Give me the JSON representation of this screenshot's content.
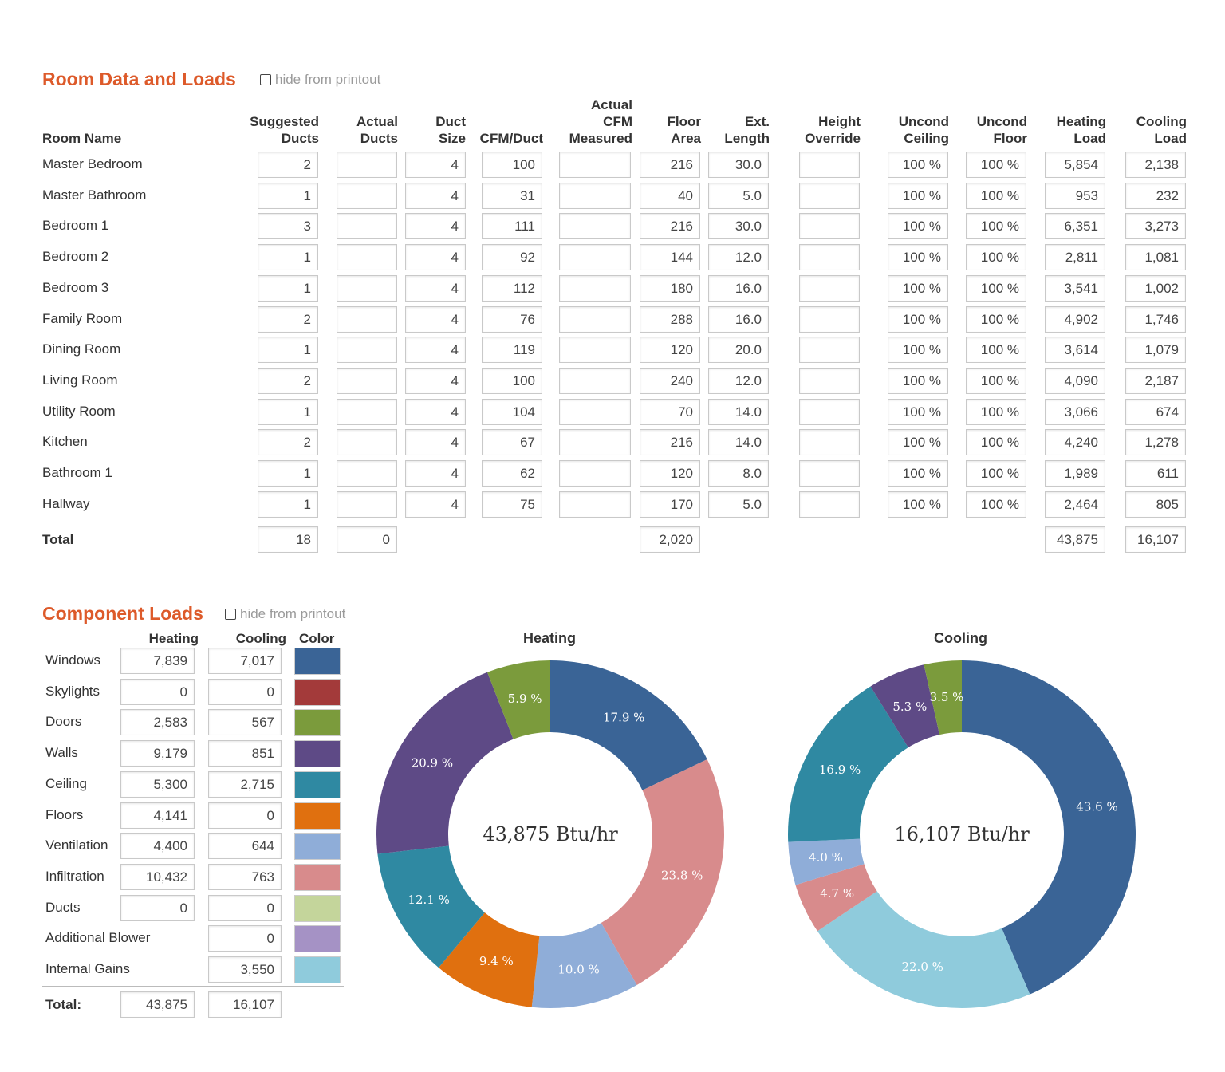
{
  "room_section": {
    "title": "Room Data and Loads",
    "hide_label": "hide from printout",
    "headers": {
      "room_name": "Room Name",
      "suggested_ducts": "Suggested\nDucts",
      "actual_ducts": "Actual\nDucts",
      "duct_size": "Duct\nSize",
      "cfm_duct": "CFM/Duct",
      "actual_cfm": "Actual\nCFM\nMeasured",
      "floor_area": "Floor\nArea",
      "ext_length": "Ext.\nLength",
      "height_override": "Height\nOverride",
      "uncond_ceiling": "Uncond\nCeiling",
      "uncond_floor": "Uncond\nFloor",
      "heating_load": "Heating\nLoad",
      "cooling_load": "Cooling\nLoad"
    },
    "rows": [
      {
        "name": "Master Bedroom",
        "suggested": "2",
        "actual": "",
        "duct_size": "4",
        "cfm": "100",
        "cfm_measured": "",
        "floor_area": "216",
        "ext_length": "30.0",
        "height": "",
        "ceiling": "100 %",
        "floor": "100 %",
        "heating": "5,854",
        "cooling": "2,138"
      },
      {
        "name": "Master Bathroom",
        "suggested": "1",
        "actual": "",
        "duct_size": "4",
        "cfm": "31",
        "cfm_measured": "",
        "floor_area": "40",
        "ext_length": "5.0",
        "height": "",
        "ceiling": "100 %",
        "floor": "100 %",
        "heating": "953",
        "cooling": "232"
      },
      {
        "name": "Bedroom 1",
        "suggested": "3",
        "actual": "",
        "duct_size": "4",
        "cfm": "111",
        "cfm_measured": "",
        "floor_area": "216",
        "ext_length": "30.0",
        "height": "",
        "ceiling": "100 %",
        "floor": "100 %",
        "heating": "6,351",
        "cooling": "3,273"
      },
      {
        "name": "Bedroom 2",
        "suggested": "1",
        "actual": "",
        "duct_size": "4",
        "cfm": "92",
        "cfm_measured": "",
        "floor_area": "144",
        "ext_length": "12.0",
        "height": "",
        "ceiling": "100 %",
        "floor": "100 %",
        "heating": "2,811",
        "cooling": "1,081"
      },
      {
        "name": "Bedroom 3",
        "suggested": "1",
        "actual": "",
        "duct_size": "4",
        "cfm": "112",
        "cfm_measured": "",
        "floor_area": "180",
        "ext_length": "16.0",
        "height": "",
        "ceiling": "100 %",
        "floor": "100 %",
        "heating": "3,541",
        "cooling": "1,002"
      },
      {
        "name": "Family Room",
        "suggested": "2",
        "actual": "",
        "duct_size": "4",
        "cfm": "76",
        "cfm_measured": "",
        "floor_area": "288",
        "ext_length": "16.0",
        "height": "",
        "ceiling": "100 %",
        "floor": "100 %",
        "heating": "4,902",
        "cooling": "1,746"
      },
      {
        "name": "Dining Room",
        "suggested": "1",
        "actual": "",
        "duct_size": "4",
        "cfm": "119",
        "cfm_measured": "",
        "floor_area": "120",
        "ext_length": "20.0",
        "height": "",
        "ceiling": "100 %",
        "floor": "100 %",
        "heating": "3,614",
        "cooling": "1,079"
      },
      {
        "name": "Living Room",
        "suggested": "2",
        "actual": "",
        "duct_size": "4",
        "cfm": "100",
        "cfm_measured": "",
        "floor_area": "240",
        "ext_length": "12.0",
        "height": "",
        "ceiling": "100 %",
        "floor": "100 %",
        "heating": "4,090",
        "cooling": "2,187"
      },
      {
        "name": "Utility Room",
        "suggested": "1",
        "actual": "",
        "duct_size": "4",
        "cfm": "104",
        "cfm_measured": "",
        "floor_area": "70",
        "ext_length": "14.0",
        "height": "",
        "ceiling": "100 %",
        "floor": "100 %",
        "heating": "3,066",
        "cooling": "674"
      },
      {
        "name": "Kitchen",
        "suggested": "2",
        "actual": "",
        "duct_size": "4",
        "cfm": "67",
        "cfm_measured": "",
        "floor_area": "216",
        "ext_length": "14.0",
        "height": "",
        "ceiling": "100 %",
        "floor": "100 %",
        "heating": "4,240",
        "cooling": "1,278"
      },
      {
        "name": "Bathroom 1",
        "suggested": "1",
        "actual": "",
        "duct_size": "4",
        "cfm": "62",
        "cfm_measured": "",
        "floor_area": "120",
        "ext_length": "8.0",
        "height": "",
        "ceiling": "100 %",
        "floor": "100 %",
        "heating": "1,989",
        "cooling": "611"
      },
      {
        "name": "Hallway",
        "suggested": "1",
        "actual": "",
        "duct_size": "4",
        "cfm": "75",
        "cfm_measured": "",
        "floor_area": "170",
        "ext_length": "5.0",
        "height": "",
        "ceiling": "100 %",
        "floor": "100 %",
        "heating": "2,464",
        "cooling": "805"
      }
    ],
    "total": {
      "label": "Total",
      "suggested": "18",
      "actual": "0",
      "floor_area": "2,020",
      "heating": "43,875",
      "cooling": "16,107"
    }
  },
  "component_section": {
    "title": "Component Loads",
    "hide_label": "hide from printout",
    "headers": {
      "heating": "Heating",
      "cooling": "Cooling",
      "color": "Color"
    },
    "rows": [
      {
        "name": "Windows",
        "heating": "7,839",
        "cooling": "7,017",
        "color": "#3a6496"
      },
      {
        "name": "Skylights",
        "heating": "0",
        "cooling": "0",
        "color": "#a33a3a"
      },
      {
        "name": "Doors",
        "heating": "2,583",
        "cooling": "567",
        "color": "#7b9b3c"
      },
      {
        "name": "Walls",
        "heating": "9,179",
        "cooling": "851",
        "color": "#5e4a86"
      },
      {
        "name": "Ceiling",
        "heating": "5,300",
        "cooling": "2,715",
        "color": "#2f89a2"
      },
      {
        "name": "Floors",
        "heating": "4,141",
        "cooling": "0",
        "color": "#e0700f"
      },
      {
        "name": "Ventilation",
        "heating": "4,400",
        "cooling": "644",
        "color": "#8fadd8"
      },
      {
        "name": "Infiltration",
        "heating": "10,432",
        "cooling": "763",
        "color": "#d88b8c"
      },
      {
        "name": "Ducts",
        "heating": "0",
        "cooling": "0",
        "color": "#c4d59b"
      },
      {
        "name": "Additional Blower",
        "heating": "",
        "cooling": "0",
        "color": "#a592c5"
      },
      {
        "name": "Internal Gains",
        "heating": "",
        "cooling": "3,550",
        "color": "#8fcbdc"
      }
    ],
    "total": {
      "label": "Total:",
      "heating": "43,875",
      "cooling": "16,107"
    }
  },
  "chart_data": [
    {
      "type": "pie",
      "title": "Heating",
      "center_label": "43,875 Btu/hr",
      "slices": [
        {
          "label": "Windows",
          "value": 17.9,
          "text": "17.9 %",
          "color": "#3a6496"
        },
        {
          "label": "Infiltration",
          "value": 23.8,
          "text": "23.8 %",
          "color": "#d88b8c"
        },
        {
          "label": "Ventilation",
          "value": 10.0,
          "text": "10.0 %",
          "color": "#8fadd8"
        },
        {
          "label": "Floors",
          "value": 9.4,
          "text": "9.4 %",
          "color": "#e0700f"
        },
        {
          "label": "Ceiling",
          "value": 12.1,
          "text": "12.1 %",
          "color": "#2f89a2"
        },
        {
          "label": "Walls",
          "value": 20.9,
          "text": "20.9 %",
          "color": "#5e4a86"
        },
        {
          "label": "Doors",
          "value": 5.9,
          "text": "5.9 %",
          "color": "#7b9b3c"
        }
      ]
    },
    {
      "type": "pie",
      "title": "Cooling",
      "center_label": "16,107 Btu/hr",
      "slices": [
        {
          "label": "Windows",
          "value": 43.6,
          "text": "43.6 %",
          "color": "#3a6496"
        },
        {
          "label": "Internal Gains",
          "value": 22.0,
          "text": "22.0 %",
          "color": "#8fcbdc"
        },
        {
          "label": "Infiltration",
          "value": 4.7,
          "text": "4.7 %",
          "color": "#d88b8c"
        },
        {
          "label": "Ventilation",
          "value": 4.0,
          "text": "4.0 %",
          "color": "#8fadd8"
        },
        {
          "label": "Ceiling",
          "value": 16.9,
          "text": "16.9 %",
          "color": "#2f89a2"
        },
        {
          "label": "Walls",
          "value": 5.3,
          "text": "5.3 %",
          "color": "#5e4a86"
        },
        {
          "label": "Doors",
          "value": 3.5,
          "text": "3.5 %",
          "color": "#7b9b3c"
        }
      ]
    }
  ]
}
